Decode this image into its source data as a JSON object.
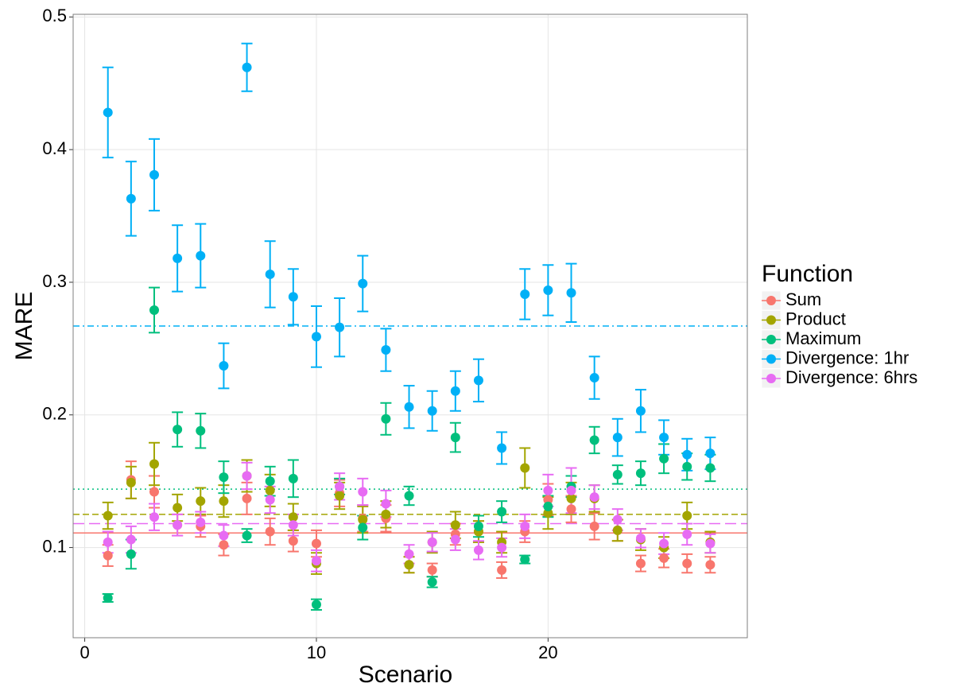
{
  "chart_data": {
    "type": "scatter",
    "x_label": "Scenario",
    "y_label": "MARE",
    "legend_title": "Function",
    "legend_position": "right",
    "grid": true,
    "xlim": [
      -0.5,
      28.6
    ],
    "xticks": [
      0,
      10,
      20
    ],
    "ylim": [
      0.032,
      0.502
    ],
    "yticks": [
      0.1,
      0.2,
      0.3,
      0.4,
      0.5
    ],
    "x": [
      1,
      2,
      3,
      4,
      5,
      6,
      7,
      8,
      9,
      10,
      11,
      12,
      13,
      14,
      15,
      16,
      17,
      18,
      19,
      20,
      21,
      22,
      23,
      24,
      25,
      26,
      27
    ],
    "series": [
      {
        "name": "Sum",
        "color": "#F8766D",
        "line_style": "solid",
        "mean": 0.111,
        "values": [
          0.094,
          0.151,
          0.142,
          0.117,
          0.116,
          0.102,
          0.137,
          0.112,
          0.105,
          0.103,
          0.141,
          0.122,
          0.122,
          0.087,
          0.083,
          0.11,
          0.112,
          0.083,
          0.112,
          0.136,
          0.129,
          0.116,
          0.113,
          0.088,
          0.092,
          0.088,
          0.087
        ],
        "errors": [
          0.008,
          0.014,
          0.012,
          0.008,
          0.008,
          0.008,
          0.012,
          0.01,
          0.008,
          0.01,
          0.01,
          0.01,
          0.01,
          0.006,
          0.005,
          0.008,
          0.008,
          0.006,
          0.008,
          0.012,
          0.01,
          0.01,
          0.008,
          0.006,
          0.007,
          0.007,
          0.006
        ]
      },
      {
        "name": "Product",
        "color": "#A3A500",
        "line_style": "dashed",
        "mean": 0.125,
        "values": [
          0.124,
          0.149,
          0.163,
          0.13,
          0.135,
          0.135,
          0.154,
          0.143,
          0.123,
          0.088,
          0.139,
          0.121,
          0.125,
          0.087,
          0.104,
          0.117,
          0.112,
          0.104,
          0.16,
          0.126,
          0.137,
          0.137,
          0.113,
          0.106,
          0.1,
          0.124,
          0.104
        ],
        "errors": [
          0.01,
          0.012,
          0.016,
          0.01,
          0.01,
          0.012,
          0.012,
          0.012,
          0.01,
          0.008,
          0.01,
          0.01,
          0.01,
          0.006,
          0.008,
          0.01,
          0.008,
          0.008,
          0.015,
          0.012,
          0.012,
          0.01,
          0.008,
          0.008,
          0.008,
          0.01,
          0.008
        ]
      },
      {
        "name": "Maximum",
        "color": "#00BF7D",
        "line_style": "dotted",
        "mean": 0.144,
        "values": [
          0.062,
          0.095,
          0.279,
          0.189,
          0.188,
          0.153,
          0.109,
          0.15,
          0.152,
          0.057,
          0.146,
          0.115,
          0.197,
          0.139,
          0.074,
          0.183,
          0.116,
          0.127,
          0.091,
          0.131,
          0.146,
          0.181,
          0.155,
          0.156,
          0.167,
          0.161,
          0.16
        ],
        "errors": [
          0.003,
          0.011,
          0.017,
          0.013,
          0.013,
          0.012,
          0.005,
          0.011,
          0.014,
          0.004,
          0.006,
          0.009,
          0.012,
          0.007,
          0.004,
          0.011,
          0.008,
          0.008,
          0.003,
          0.008,
          0.008,
          0.01,
          0.007,
          0.009,
          0.011,
          0.01,
          0.01
        ]
      },
      {
        "name": "Divergence: 1hr",
        "color": "#00B0F6",
        "line_style": "dashdot",
        "mean": 0.267,
        "values": [
          0.428,
          0.363,
          0.381,
          0.318,
          0.32,
          0.237,
          0.462,
          0.306,
          0.289,
          0.259,
          0.266,
          0.299,
          0.249,
          0.206,
          0.203,
          0.218,
          0.226,
          0.175,
          0.291,
          0.294,
          0.292,
          0.228,
          0.183,
          0.203,
          0.183,
          0.17,
          0.171
        ],
        "errors": [
          0.034,
          0.028,
          0.027,
          0.025,
          0.024,
          0.017,
          0.018,
          0.025,
          0.021,
          0.023,
          0.022,
          0.021,
          0.016,
          0.016,
          0.015,
          0.015,
          0.016,
          0.012,
          0.019,
          0.019,
          0.022,
          0.016,
          0.014,
          0.016,
          0.013,
          0.012,
          0.012
        ]
      },
      {
        "name": "Divergence: 6hrs",
        "color": "#E76BF3",
        "line_style": "longdash",
        "mean": 0.118,
        "values": [
          0.104,
          0.106,
          0.123,
          0.117,
          0.119,
          0.109,
          0.154,
          0.136,
          0.117,
          0.09,
          0.146,
          0.142,
          0.133,
          0.095,
          0.104,
          0.106,
          0.098,
          0.1,
          0.116,
          0.143,
          0.143,
          0.138,
          0.121,
          0.107,
          0.103,
          0.11,
          0.103
        ],
        "errors": [
          0.008,
          0.01,
          0.01,
          0.008,
          0.008,
          0.008,
          0.01,
          0.01,
          0.008,
          0.008,
          0.01,
          0.01,
          0.01,
          0.007,
          0.007,
          0.008,
          0.007,
          0.007,
          0.009,
          0.012,
          0.017,
          0.009,
          0.008,
          0.007,
          0.008,
          0.008,
          0.007
        ]
      }
    ]
  }
}
